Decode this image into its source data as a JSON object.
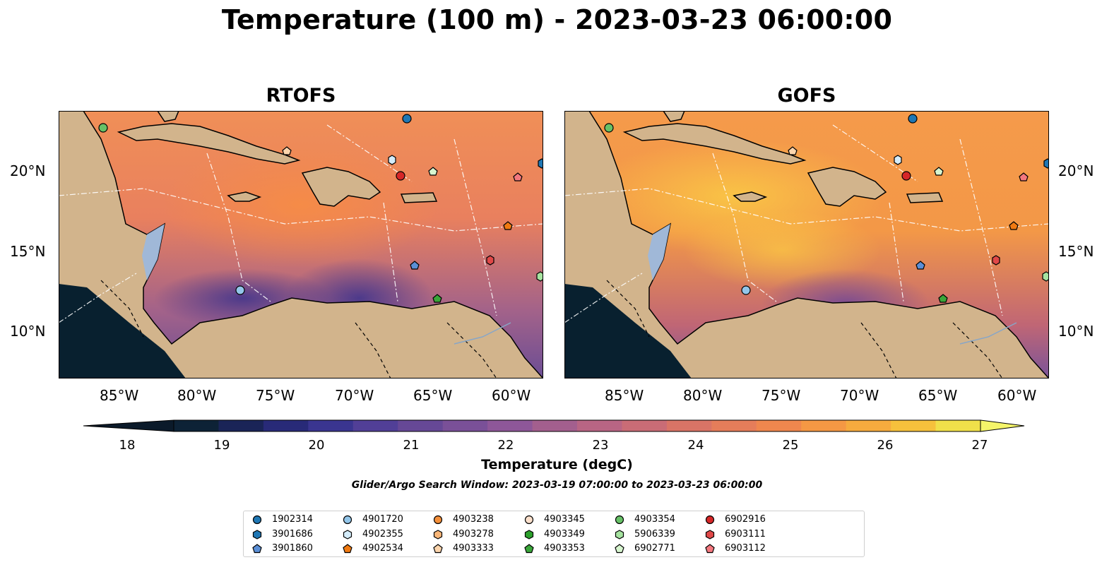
{
  "title": "Temperature (100 m) - 2023-03-23 06:00:00",
  "panels": [
    {
      "name": "RTOFS"
    },
    {
      "name": "GOFS"
    }
  ],
  "lat_ticks": [
    "20°N",
    "15°N",
    "10°N"
  ],
  "lon_ticks": [
    "85°W",
    "80°W",
    "75°W",
    "70°W",
    "65°W",
    "60°W"
  ],
  "colorbar": {
    "label": "Temperature (degC)",
    "ticks": [
      "18",
      "19",
      "20",
      "21",
      "22",
      "23",
      "24",
      "25",
      "26",
      "27"
    ],
    "colors": [
      "#0d2236",
      "#1a2457",
      "#282a78",
      "#3a3590",
      "#513f97",
      "#664896",
      "#7a5098",
      "#8e5799",
      "#a35f8e",
      "#b86584",
      "#c96c76",
      "#d97466",
      "#e57d5a",
      "#ef874e",
      "#f59844",
      "#f6ab3e",
      "#f6c13c",
      "#f0e04a"
    ],
    "extend_low_color": "#0b1a2a",
    "extend_high_color": "#f5f56a"
  },
  "search_window": "Glider/Argo Search Window: 2023-03-19 07:00:00 to 2023-03-23 06:00:00",
  "land_color": "#d2b48c",
  "shelf_color": "#9ab8e0",
  "legend": [
    {
      "id": "1902314",
      "marker": "circle",
      "color": "#1f77b4"
    },
    {
      "id": "3901686",
      "marker": "hexagon",
      "color": "#1f77b4"
    },
    {
      "id": "3901860",
      "marker": "pentagon",
      "color": "#5b8fd6"
    },
    {
      "id": "4901720",
      "marker": "circle",
      "color": "#93c6ea"
    },
    {
      "id": "4902355",
      "marker": "hexagon",
      "color": "#d4ecfa"
    },
    {
      "id": "4902534",
      "marker": "pentagon",
      "color": "#f07a12"
    },
    {
      "id": "4903238",
      "marker": "circle",
      "color": "#f48f3a"
    },
    {
      "id": "4903278",
      "marker": "hexagon",
      "color": "#f9b678"
    },
    {
      "id": "4903333",
      "marker": "pentagon",
      "color": "#fcd5ad"
    },
    {
      "id": "4903345",
      "marker": "circle",
      "color": "#fbe0cc"
    },
    {
      "id": "4903349",
      "marker": "hexagon",
      "color": "#2ca02c"
    },
    {
      "id": "4903353",
      "marker": "pentagon",
      "color": "#3aa63a"
    },
    {
      "id": "4903354",
      "marker": "circle",
      "color": "#67c167"
    },
    {
      "id": "5906339",
      "marker": "hexagon",
      "color": "#a6e3a0"
    },
    {
      "id": "6902771",
      "marker": "pentagon",
      "color": "#d7f5cf"
    },
    {
      "id": "6902916",
      "marker": "circle",
      "color": "#d62728"
    },
    {
      "id": "6903111",
      "marker": "hexagon",
      "color": "#e04848"
    },
    {
      "id": "6903112",
      "marker": "pentagon",
      "color": "#f4787f"
    }
  ]
}
